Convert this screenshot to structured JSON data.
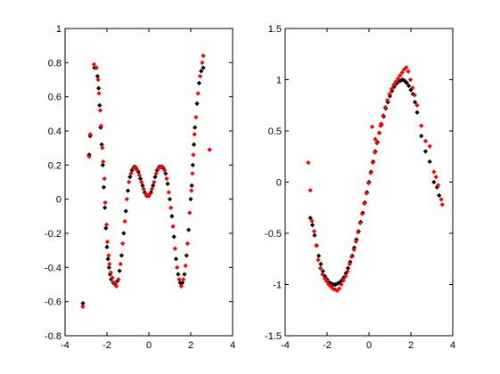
{
  "chart_data": [
    {
      "type": "scatter",
      "xlim": [
        -4,
        4
      ],
      "ylim": [
        -0.8,
        1
      ],
      "x_ticks": [
        "-4",
        "-2",
        "0",
        "2",
        "4"
      ],
      "y_ticks": [
        "-0.8",
        "-0.6",
        "-0.4",
        "-0.2",
        "0",
        "0.2",
        "0.4",
        "0.6",
        "0.8",
        "1"
      ],
      "grid": false,
      "series": [
        {
          "color": "#000000",
          "points": [
            [
              -3.15,
              -0.61
            ],
            [
              -2.85,
              0.26
            ],
            [
              -2.8,
              0.37
            ],
            [
              -2.6,
              0.77
            ],
            [
              -2.45,
              0.72
            ],
            [
              -2.4,
              0.65
            ],
            [
              -2.35,
              0.55
            ],
            [
              -2.3,
              0.42
            ],
            [
              -2.25,
              0.32
            ],
            [
              -2.2,
              0.2
            ],
            [
              -2.15,
              0.07
            ],
            [
              -2.1,
              -0.05
            ],
            [
              -2.05,
              -0.17
            ],
            [
              -2.0,
              -0.28
            ],
            [
              -1.95,
              -0.35
            ],
            [
              -1.9,
              -0.4
            ],
            [
              -1.85,
              -0.44
            ],
            [
              -1.8,
              -0.47
            ],
            [
              -1.7,
              -0.49
            ],
            [
              -1.6,
              -0.5
            ],
            [
              -1.5,
              -0.48
            ],
            [
              -1.4,
              -0.42
            ],
            [
              -1.3,
              -0.33
            ],
            [
              -1.2,
              -0.2
            ],
            [
              -1.1,
              -0.07
            ],
            [
              -1.0,
              0.05
            ],
            [
              -0.9,
              0.13
            ],
            [
              -0.8,
              0.17
            ],
            [
              -0.7,
              0.19
            ],
            [
              -0.6,
              0.18
            ],
            [
              -0.5,
              0.16
            ],
            [
              -0.4,
              0.12
            ],
            [
              -0.3,
              0.08
            ],
            [
              -0.2,
              0.04
            ],
            [
              -0.1,
              0.02
            ],
            [
              0.0,
              0.02
            ],
            [
              0.1,
              0.04
            ],
            [
              0.2,
              0.08
            ],
            [
              0.3,
              0.13
            ],
            [
              0.4,
              0.17
            ],
            [
              0.5,
              0.19
            ],
            [
              0.6,
              0.19
            ],
            [
              0.7,
              0.18
            ],
            [
              0.8,
              0.15
            ],
            [
              0.9,
              0.09
            ],
            [
              1.0,
              0.0
            ],
            [
              1.1,
              -0.1
            ],
            [
              1.2,
              -0.22
            ],
            [
              1.3,
              -0.35
            ],
            [
              1.4,
              -0.44
            ],
            [
              1.5,
              -0.49
            ],
            [
              1.6,
              -0.49
            ],
            [
              1.7,
              -0.44
            ],
            [
              1.8,
              -0.33
            ],
            [
              1.9,
              -0.18
            ],
            [
              2.0,
              0.0
            ],
            [
              2.05,
              0.08
            ],
            [
              2.1,
              0.2
            ],
            [
              2.15,
              0.32
            ],
            [
              2.2,
              0.42
            ],
            [
              2.3,
              0.56
            ],
            [
              2.4,
              0.68
            ],
            [
              2.5,
              0.75
            ],
            [
              2.6,
              0.77
            ],
            [
              2.9,
              0.29
            ]
          ]
        },
        {
          "color": "#ff0000",
          "points": [
            [
              -3.15,
              -0.63
            ],
            [
              -2.85,
              0.25
            ],
            [
              -2.8,
              0.38
            ],
            [
              -2.62,
              0.79
            ],
            [
              -2.5,
              0.77
            ],
            [
              -2.42,
              0.7
            ],
            [
              -2.38,
              0.62
            ],
            [
              -2.32,
              0.52
            ],
            [
              -2.28,
              0.43
            ],
            [
              -2.22,
              0.3
            ],
            [
              -2.18,
              0.22
            ],
            [
              -2.12,
              0.12
            ],
            [
              -2.08,
              -0.02
            ],
            [
              -2.02,
              -0.15
            ],
            [
              -1.98,
              -0.25
            ],
            [
              -1.92,
              -0.33
            ],
            [
              -1.88,
              -0.38
            ],
            [
              -1.82,
              -0.43
            ],
            [
              -1.75,
              -0.46
            ],
            [
              -1.65,
              -0.49
            ],
            [
              -1.55,
              -0.51
            ],
            [
              -1.45,
              -0.47
            ],
            [
              -1.35,
              -0.38
            ],
            [
              -1.25,
              -0.26
            ],
            [
              -1.15,
              -0.13
            ],
            [
              -1.05,
              0.0
            ],
            [
              -0.95,
              0.1
            ],
            [
              -0.85,
              0.15
            ],
            [
              -0.75,
              0.18
            ],
            [
              -0.65,
              0.19
            ],
            [
              -0.55,
              0.17
            ],
            [
              -0.45,
              0.14
            ],
            [
              -0.35,
              0.1
            ],
            [
              -0.25,
              0.06
            ],
            [
              -0.15,
              0.03
            ],
            [
              -0.05,
              0.02
            ],
            [
              0.05,
              0.03
            ],
            [
              0.15,
              0.06
            ],
            [
              0.25,
              0.1
            ],
            [
              0.35,
              0.15
            ],
            [
              0.45,
              0.18
            ],
            [
              0.55,
              0.19
            ],
            [
              0.65,
              0.19
            ],
            [
              0.75,
              0.17
            ],
            [
              0.85,
              0.12
            ],
            [
              0.95,
              0.04
            ],
            [
              1.05,
              -0.05
            ],
            [
              1.15,
              -0.16
            ],
            [
              1.25,
              -0.29
            ],
            [
              1.35,
              -0.4
            ],
            [
              1.45,
              -0.47
            ],
            [
              1.55,
              -0.51
            ],
            [
              1.65,
              -0.47
            ],
            [
              1.75,
              -0.39
            ],
            [
              1.85,
              -0.26
            ],
            [
              1.95,
              -0.08
            ],
            [
              2.03,
              0.05
            ],
            [
              2.08,
              0.15
            ],
            [
              2.12,
              0.26
            ],
            [
              2.18,
              0.38
            ],
            [
              2.25,
              0.48
            ],
            [
              2.35,
              0.62
            ],
            [
              2.45,
              0.72
            ],
            [
              2.55,
              0.8
            ],
            [
              2.6,
              0.84
            ],
            [
              2.9,
              0.29
            ]
          ]
        }
      ]
    },
    {
      "type": "scatter",
      "xlim": [
        -4,
        4
      ],
      "ylim": [
        -1.5,
        1.5
      ],
      "x_ticks": [
        "-4",
        "-2",
        "0",
        "2",
        "4"
      ],
      "y_ticks": [
        "-1.5",
        "-1",
        "-0.5",
        "0",
        "0.5",
        "1",
        "1.5"
      ],
      "grid": false,
      "series": [
        {
          "color": "#000000",
          "points": [
            [
              -2.8,
              -0.35
            ],
            [
              -2.7,
              -0.42
            ],
            [
              -2.6,
              -0.52
            ],
            [
              -2.5,
              -0.62
            ],
            [
              -2.4,
              -0.72
            ],
            [
              -2.3,
              -0.8
            ],
            [
              -2.2,
              -0.87
            ],
            [
              -2.1,
              -0.92
            ],
            [
              -2.0,
              -0.95
            ],
            [
              -1.9,
              -0.98
            ],
            [
              -1.8,
              -0.99
            ],
            [
              -1.7,
              -1.0
            ],
            [
              -1.6,
              -1.0
            ],
            [
              -1.5,
              -0.99
            ],
            [
              -1.4,
              -0.98
            ],
            [
              -1.3,
              -0.96
            ],
            [
              -1.2,
              -0.93
            ],
            [
              -1.1,
              -0.89
            ],
            [
              -1.0,
              -0.84
            ],
            [
              -0.9,
              -0.78
            ],
            [
              -0.8,
              -0.72
            ],
            [
              -0.7,
              -0.64
            ],
            [
              -0.6,
              -0.56
            ],
            [
              -0.5,
              -0.48
            ],
            [
              -0.4,
              -0.39
            ],
            [
              -0.3,
              -0.3
            ],
            [
              -0.2,
              -0.2
            ],
            [
              -0.1,
              -0.1
            ],
            [
              0.0,
              0.0
            ],
            [
              0.1,
              0.1
            ],
            [
              0.2,
              0.2
            ],
            [
              0.3,
              0.3
            ],
            [
              0.4,
              0.39
            ],
            [
              0.5,
              0.48
            ],
            [
              0.6,
              0.56
            ],
            [
              0.7,
              0.64
            ],
            [
              0.8,
              0.72
            ],
            [
              0.9,
              0.78
            ],
            [
              1.0,
              0.84
            ],
            [
              1.1,
              0.89
            ],
            [
              1.2,
              0.93
            ],
            [
              1.3,
              0.96
            ],
            [
              1.4,
              0.98
            ],
            [
              1.5,
              0.99
            ],
            [
              1.6,
              1.0
            ],
            [
              1.7,
              0.99
            ],
            [
              1.8,
              0.97
            ],
            [
              1.9,
              0.94
            ],
            [
              2.0,
              0.9
            ],
            [
              2.1,
              0.86
            ],
            [
              2.2,
              0.78
            ],
            [
              2.3,
              0.68
            ],
            [
              2.5,
              0.45
            ],
            [
              2.7,
              0.3
            ],
            [
              2.9,
              0.2
            ],
            [
              3.1,
              0.0
            ],
            [
              3.25,
              -0.05
            ],
            [
              3.35,
              -0.13
            ]
          ]
        },
        {
          "color": "#ff0000",
          "points": [
            [
              -2.9,
              0.19
            ],
            [
              -2.8,
              -0.08
            ],
            [
              -2.72,
              -0.38
            ],
            [
              -2.62,
              -0.48
            ],
            [
              -2.52,
              -0.62
            ],
            [
              -2.42,
              -0.76
            ],
            [
              -2.32,
              -0.84
            ],
            [
              -2.22,
              -0.9
            ],
            [
              -2.12,
              -0.94
            ],
            [
              -2.02,
              -0.97
            ],
            [
              -1.92,
              -1.0
            ],
            [
              -1.82,
              -1.02
            ],
            [
              -1.72,
              -1.04
            ],
            [
              -1.62,
              -1.05
            ],
            [
              -1.52,
              -1.06
            ],
            [
              -1.42,
              -1.04
            ],
            [
              -1.32,
              -1.0
            ],
            [
              -1.22,
              -0.96
            ],
            [
              -1.12,
              -0.92
            ],
            [
              -1.02,
              -0.87
            ],
            [
              -0.92,
              -0.8
            ],
            [
              -0.82,
              -0.73
            ],
            [
              -0.72,
              -0.66
            ],
            [
              -0.62,
              -0.58
            ],
            [
              -0.52,
              -0.49
            ],
            [
              -0.42,
              -0.4
            ],
            [
              -0.32,
              -0.31
            ],
            [
              -0.22,
              -0.21
            ],
            [
              -0.12,
              -0.11
            ],
            [
              -0.02,
              -0.01
            ],
            [
              0.08,
              0.09
            ],
            [
              0.18,
              0.19
            ],
            [
              0.28,
              0.29
            ],
            [
              0.38,
              0.38
            ],
            [
              0.48,
              0.48
            ],
            [
              0.58,
              0.57
            ],
            [
              0.68,
              0.65
            ],
            [
              0.78,
              0.73
            ],
            [
              0.88,
              0.8
            ],
            [
              0.98,
              0.86
            ],
            [
              1.08,
              0.91
            ],
            [
              1.18,
              0.95
            ],
            [
              1.28,
              0.98
            ],
            [
              1.38,
              1.01
            ],
            [
              1.48,
              1.04
            ],
            [
              1.58,
              1.07
            ],
            [
              1.68,
              1.1
            ],
            [
              1.78,
              1.12
            ],
            [
              1.88,
              1.08
            ],
            [
              1.98,
              1.0
            ],
            [
              2.08,
              0.92
            ],
            [
              2.18,
              0.85
            ],
            [
              2.3,
              0.75
            ],
            [
              2.5,
              0.55
            ],
            [
              2.7,
              0.4
            ],
            [
              2.9,
              0.35
            ],
            [
              3.1,
              0.1
            ],
            [
              3.2,
              0.05
            ],
            [
              3.3,
              -0.03
            ],
            [
              3.45,
              -0.17
            ],
            [
              3.5,
              -0.22
            ],
            [
              0.15,
              0.54
            ],
            [
              0.55,
              0.55
            ],
            [
              0.3,
              0.42
            ]
          ]
        }
      ]
    }
  ]
}
